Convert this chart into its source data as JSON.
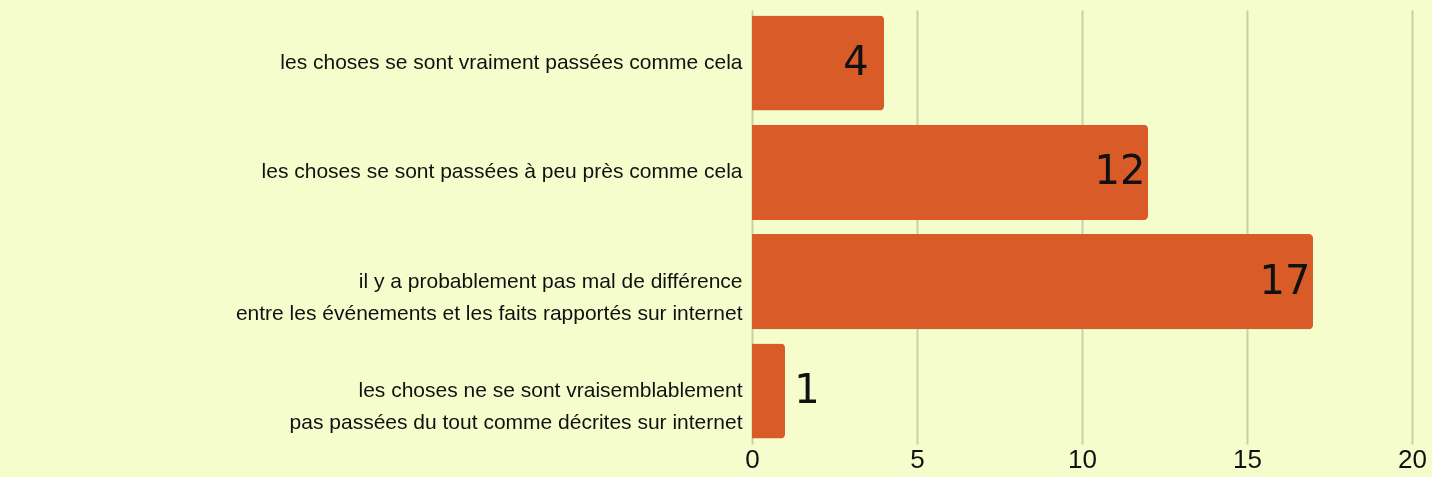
{
  "chart_data": {
    "type": "bar",
    "orientation": "horizontal",
    "categories": [
      "les choses se sont vraiment passées comme cela",
      "les choses se sont passées à peu près comme cela",
      "il y a probablement pas mal de différence\nentre les événements et les faits rapportés sur internet",
      "les choses ne se sont vraisemblablement\npas passées du tout comme décrites sur internet"
    ],
    "values": [
      4,
      12,
      17,
      1
    ],
    "color": "#d95b27",
    "xlim": [
      0,
      20
    ],
    "xticks": [
      0,
      5,
      10,
      15,
      20
    ],
    "grid": "x",
    "data_labels": true
  }
}
